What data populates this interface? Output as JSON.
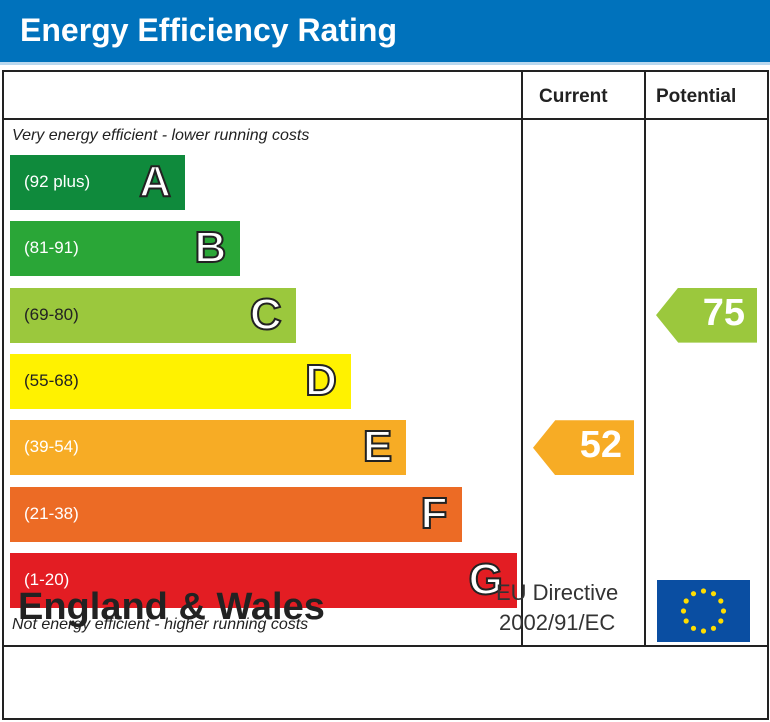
{
  "title": "Energy Efficiency Rating",
  "chart_data": {
    "type": "bar",
    "columns": [
      "Current",
      "Potential"
    ],
    "top_note": "Very energy efficient - lower running costs",
    "bottom_note": "Not energy efficient - higher running costs",
    "bands": [
      {
        "letter": "A",
        "range": "(92 plus)",
        "color": "#0f8a3c"
      },
      {
        "letter": "B",
        "range": "(81-91)",
        "color": "#2aa637"
      },
      {
        "letter": "C",
        "range": "(69-80)",
        "color": "#9bc83d"
      },
      {
        "letter": "D",
        "range": "(55-68)",
        "color": "#fff200"
      },
      {
        "letter": "E",
        "range": "(39-54)",
        "color": "#f7ac25"
      },
      {
        "letter": "F",
        "range": "(21-38)",
        "color": "#ec6b25"
      },
      {
        "letter": "G",
        "range": "(1-20)",
        "color": "#e31d23"
      }
    ],
    "current": {
      "value": "52",
      "band": "E"
    },
    "potential": {
      "value": "75",
      "band": "C"
    }
  },
  "footer": {
    "region": "England & Wales",
    "directive_line1": "EU Directive",
    "directive_line2": "2002/91/EC"
  }
}
